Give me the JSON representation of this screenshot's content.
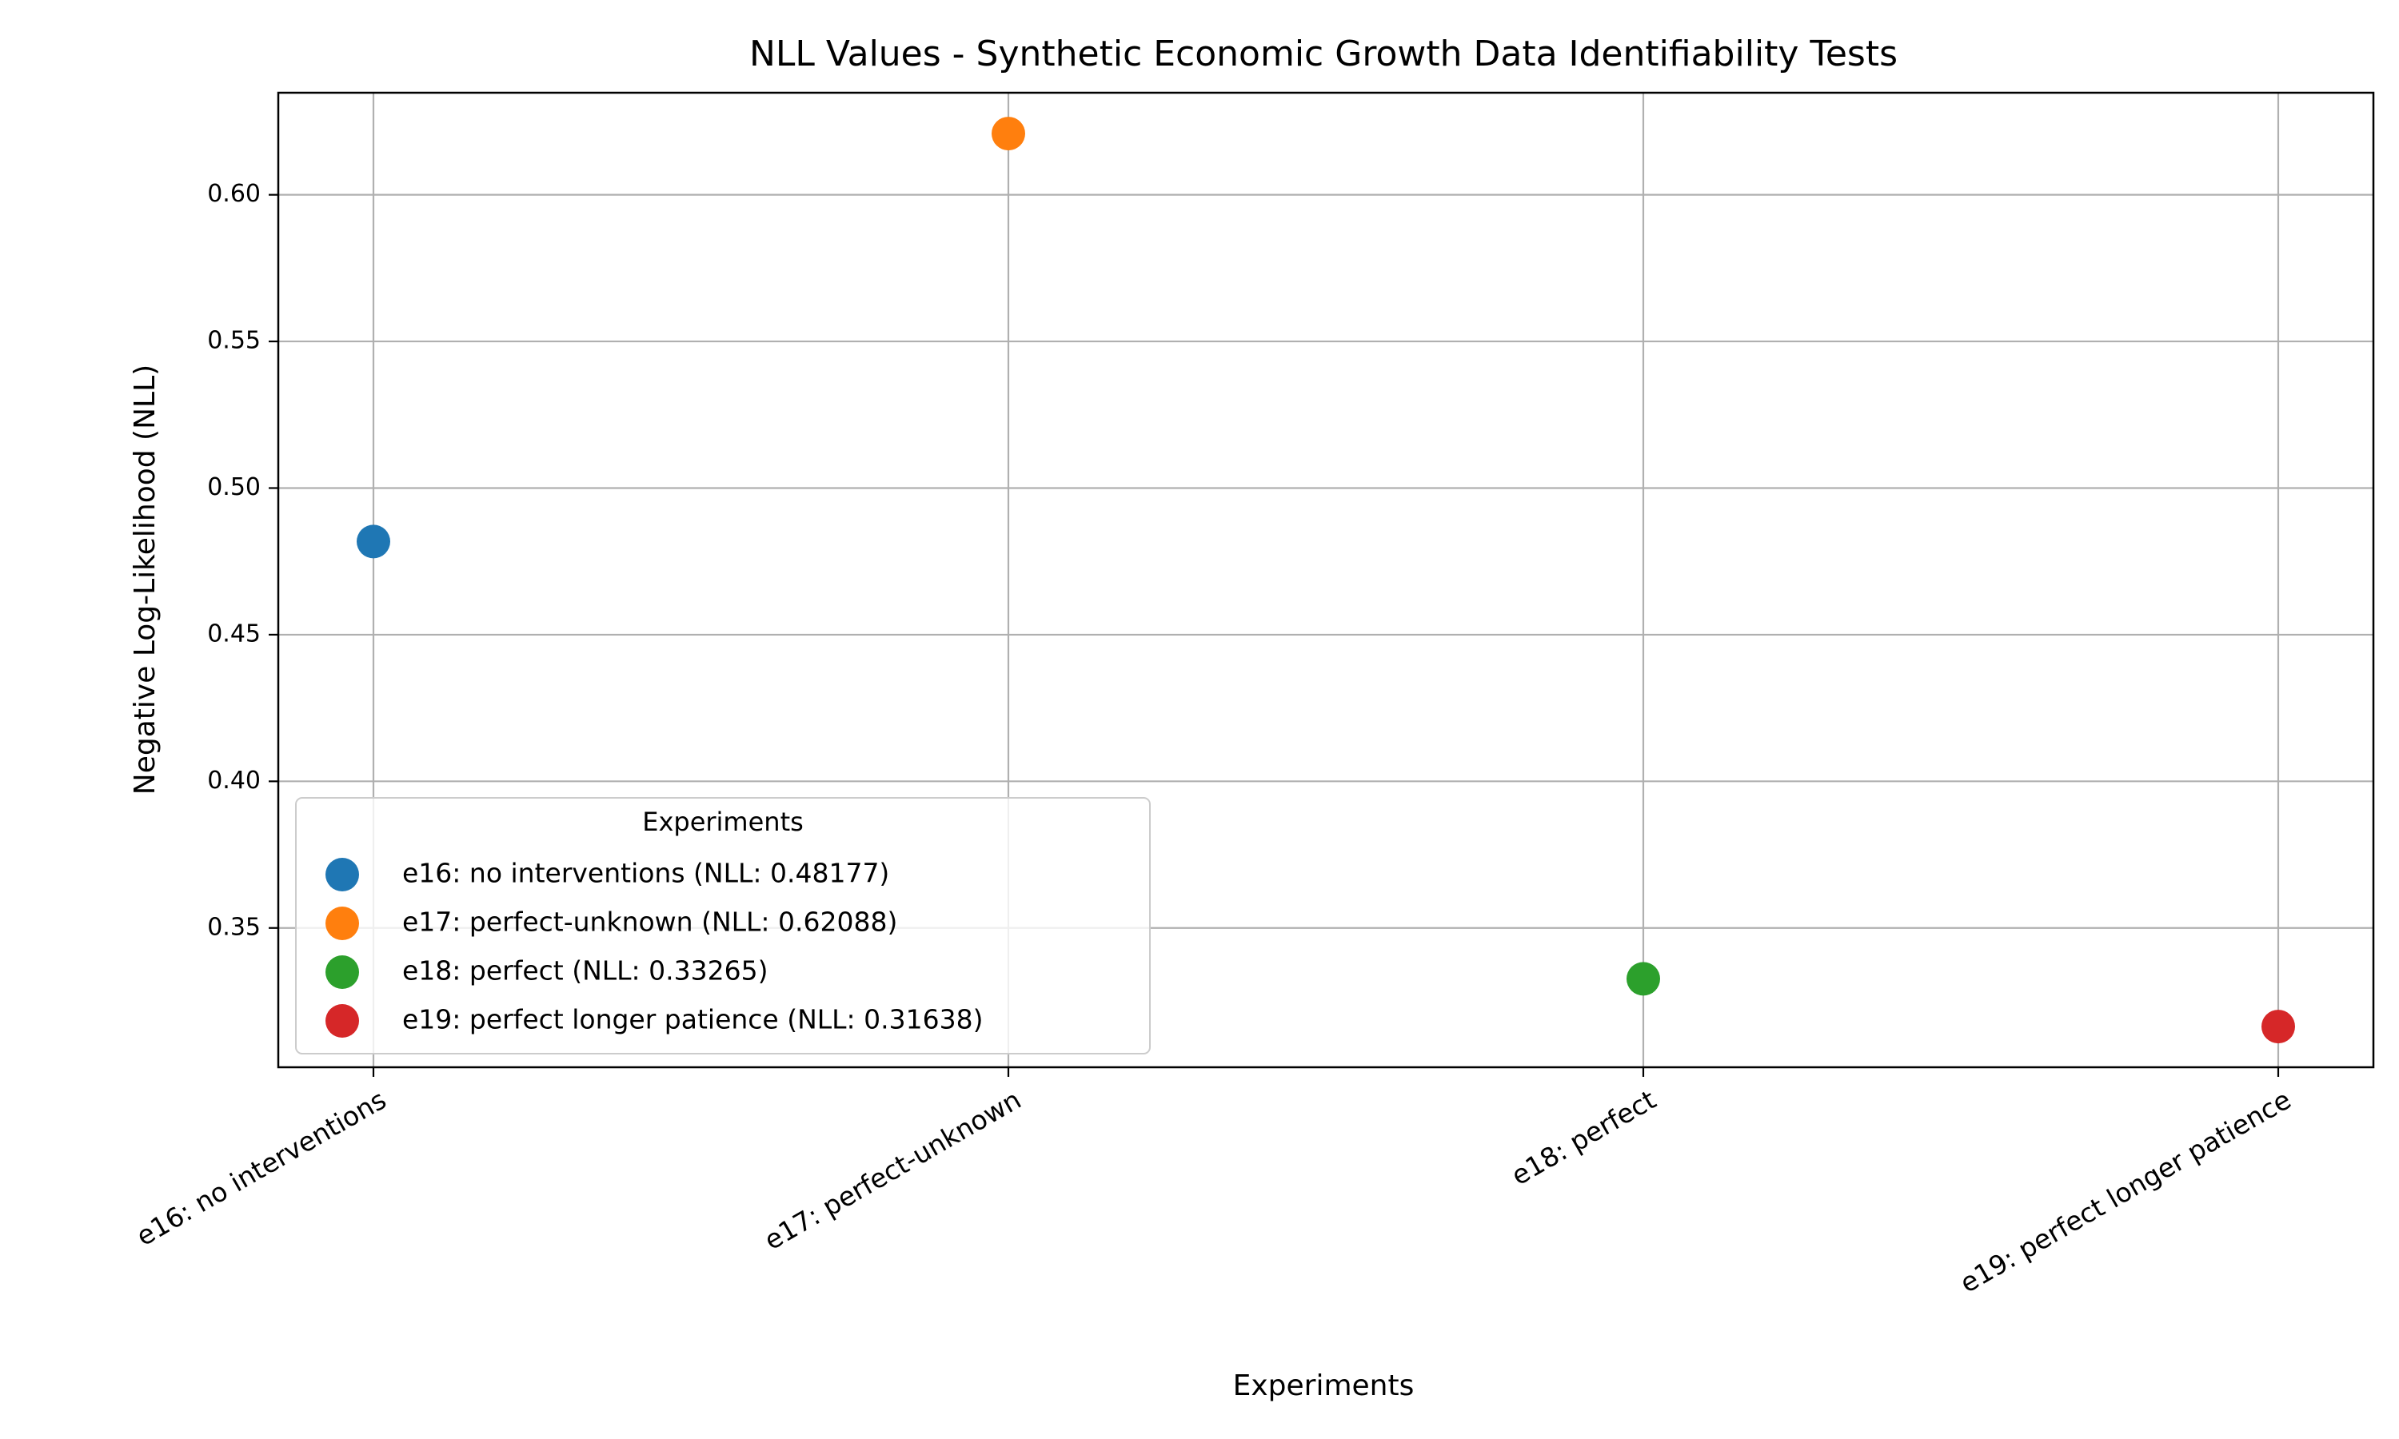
{
  "chart_data": {
    "type": "scatter",
    "title": "NLL Values - Synthetic Economic Growth Data Identifiability Tests",
    "xlabel": "Experiments",
    "ylabel": "Negative Log-Likelihood (NLL)",
    "categories": [
      "e16: no interventions",
      "e17: perfect-unknown",
      "e18: perfect",
      "e19: perfect longer patience"
    ],
    "series": [
      {
        "name": "e16: no interventions (NLL: 0.48177)",
        "x": "e16: no interventions",
        "value": 0.48177,
        "color": "#1f77b4"
      },
      {
        "name": "e17: perfect-unknown (NLL: 0.62088)",
        "x": "e17: perfect-unknown",
        "value": 0.62088,
        "color": "#ff7f0e"
      },
      {
        "name": "e18: perfect (NLL: 0.33265)",
        "x": "e18: perfect",
        "value": 0.33265,
        "color": "#2ca02c"
      },
      {
        "name": "e19: perfect longer patience (NLL: 0.31638)",
        "x": "e19: perfect longer patience",
        "value": 0.31638,
        "color": "#d62728"
      }
    ],
    "yticks": [
      "0.35",
      "0.40",
      "0.45",
      "0.50",
      "0.55",
      "0.60"
    ],
    "ylim": [
      0.3025,
      0.6348
    ],
    "grid": true,
    "legend": {
      "title": "Experiments",
      "placement": "lower-left"
    }
  }
}
